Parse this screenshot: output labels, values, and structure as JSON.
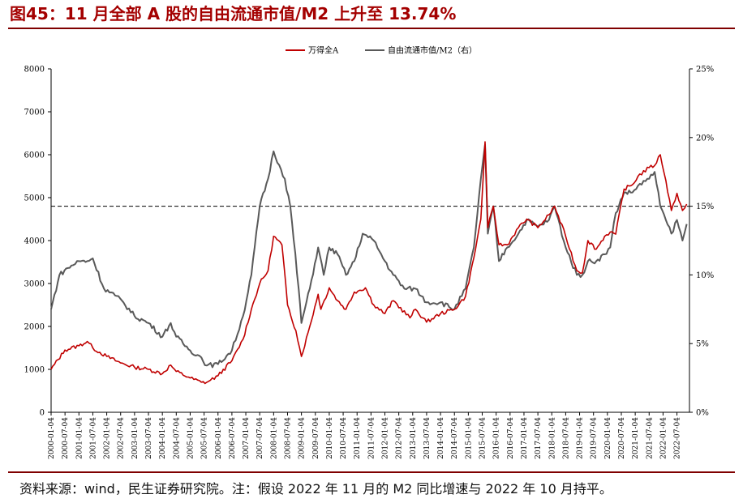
{
  "title": "图45：11 月全部 A 股的自由流通市值/M2 上升至 13.74%",
  "source": "资料来源：wind，民生证券研究院。注：假设 2022 年 11 月的 M2 同比增速与 2022 年 10 月持平。",
  "colors": {
    "series1": "#c00000",
    "series2": "#595959",
    "title": "#a40000",
    "rule": "#7f0000"
  },
  "chart_data": {
    "type": "line",
    "title": "",
    "legend": "top-center",
    "reference_line": {
      "axis": "right",
      "value": 15,
      "style": "dashed"
    },
    "x_ticks": [
      "2000-01-04",
      "2000-07-04",
      "2001-01-04",
      "2001-07-04",
      "2002-01-04",
      "2002-07-04",
      "2003-01-04",
      "2003-07-04",
      "2004-01-04",
      "2004-07-04",
      "2005-01-04",
      "2005-07-04",
      "2006-01-04",
      "2006-07-04",
      "2007-01-04",
      "2007-07-04",
      "2008-01-04",
      "2008-07-04",
      "2009-01-04",
      "2009-07-04",
      "2010-01-04",
      "2010-07-04",
      "2011-01-04",
      "2011-07-04",
      "2012-01-04",
      "2012-07-04",
      "2013-01-04",
      "2013-07-04",
      "2014-01-04",
      "2014-07-04",
      "2015-01-04",
      "2015-07-04",
      "2016-01-04",
      "2016-07-04",
      "2017-01-04",
      "2017-07-04",
      "2018-01-04",
      "2018-07-04",
      "2019-01-04",
      "2019-07-04",
      "2020-01-04",
      "2020-07-04",
      "2021-01-04",
      "2021-07-04",
      "2022-01-04",
      "2022-07-04"
    ],
    "y_left": {
      "min": 0,
      "max": 8000,
      "ticks": [
        "0",
        "1000",
        "2000",
        "3000",
        "4000",
        "5000",
        "6000",
        "7000",
        "8000"
      ]
    },
    "y_right": {
      "min": 0,
      "max": 25,
      "ticks": [
        "0%",
        "5%",
        "10%",
        "15%",
        "20%",
        "25%"
      ]
    },
    "series": [
      {
        "name": "万得全A",
        "axis": "left",
        "x": [
          2000.0,
          2000.5,
          2001.0,
          2001.3,
          2001.5,
          2002.0,
          2002.5,
          2003.0,
          2003.5,
          2004.0,
          2004.3,
          2004.5,
          2005.0,
          2005.4,
          2005.6,
          2006.0,
          2006.5,
          2006.9,
          2007.2,
          2007.5,
          2007.8,
          2008.0,
          2008.3,
          2008.5,
          2008.8,
          2009.0,
          2009.3,
          2009.6,
          2009.7,
          2010.0,
          2010.3,
          2010.6,
          2010.9,
          2011.3,
          2011.6,
          2012.0,
          2012.3,
          2012.9,
          2013.1,
          2013.5,
          2014.0,
          2014.5,
          2014.9,
          2015.2,
          2015.45,
          2015.6,
          2015.7,
          2015.9,
          2016.1,
          2016.4,
          2016.8,
          2017.1,
          2017.5,
          2017.9,
          2018.1,
          2018.5,
          2018.9,
          2019.1,
          2019.3,
          2019.6,
          2019.9,
          2020.1,
          2020.3,
          2020.6,
          2020.9,
          2021.1,
          2021.5,
          2021.7,
          2021.9,
          2022.1,
          2022.3,
          2022.5,
          2022.7,
          2022.85
        ],
        "y": [
          1000,
          1450,
          1550,
          1650,
          1500,
          1300,
          1150,
          1050,
          1000,
          900,
          1100,
          950,
          800,
          700,
          700,
          850,
          1200,
          1700,
          2400,
          3000,
          3300,
          4100,
          3900,
          2500,
          1900,
          1300,
          2000,
          2750,
          2400,
          2900,
          2600,
          2400,
          2800,
          2900,
          2500,
          2300,
          2600,
          2200,
          2400,
          2100,
          2300,
          2400,
          2700,
          3600,
          4500,
          6300,
          4300,
          4800,
          3900,
          3900,
          4300,
          4500,
          4300,
          4600,
          4800,
          4100,
          3300,
          3250,
          4000,
          3800,
          4100,
          4200,
          4150,
          5200,
          5300,
          5500,
          5700,
          5750,
          6000,
          5400,
          4700,
          5100,
          4700,
          4850
        ]
      },
      {
        "name": "自由流通市值/M2（右）",
        "axis": "right",
        "x": [
          2000.0,
          2000.3,
          2000.6,
          2001.0,
          2001.3,
          2001.5,
          2001.9,
          2002.3,
          2002.6,
          2003.0,
          2003.5,
          2004.0,
          2004.3,
          2004.5,
          2005.0,
          2005.4,
          2005.6,
          2006.0,
          2006.5,
          2006.9,
          2007.2,
          2007.5,
          2007.8,
          2008.0,
          2008.2,
          2008.4,
          2008.6,
          2008.9,
          2009.0,
          2009.3,
          2009.6,
          2009.8,
          2010.0,
          2010.3,
          2010.6,
          2010.9,
          2011.2,
          2011.6,
          2012.0,
          2012.3,
          2012.7,
          2013.1,
          2013.5,
          2014.0,
          2014.5,
          2014.9,
          2015.2,
          2015.45,
          2015.6,
          2015.7,
          2015.9,
          2016.1,
          2016.4,
          2016.8,
          2017.1,
          2017.5,
          2017.9,
          2018.1,
          2018.5,
          2018.9,
          2019.1,
          2019.3,
          2019.6,
          2019.9,
          2020.1,
          2020.3,
          2020.6,
          2020.9,
          2021.1,
          2021.5,
          2021.7,
          2021.9,
          2022.1,
          2022.3,
          2022.5,
          2022.7,
          2022.85
        ],
        "y": [
          7.5,
          10,
          10.5,
          11,
          11,
          11.2,
          9,
          8.5,
          8,
          7,
          6.5,
          5.5,
          6.5,
          5.5,
          4.5,
          4,
          3.4,
          3.5,
          4.5,
          7,
          10,
          15,
          17,
          19,
          18,
          17,
          15,
          9,
          6.5,
          9,
          12,
          10,
          12,
          11.5,
          10,
          11,
          13,
          12.5,
          11,
          10,
          9,
          9,
          8,
          8,
          7.5,
          9,
          12,
          17,
          19.5,
          13,
          15,
          11,
          12,
          13,
          14,
          13.5,
          14,
          15,
          12,
          10,
          10,
          11,
          11,
          11.5,
          12,
          14.5,
          16,
          16,
          16.5,
          17,
          17.5,
          15,
          14,
          13,
          14,
          12.5,
          13.7
        ]
      }
    ]
  }
}
